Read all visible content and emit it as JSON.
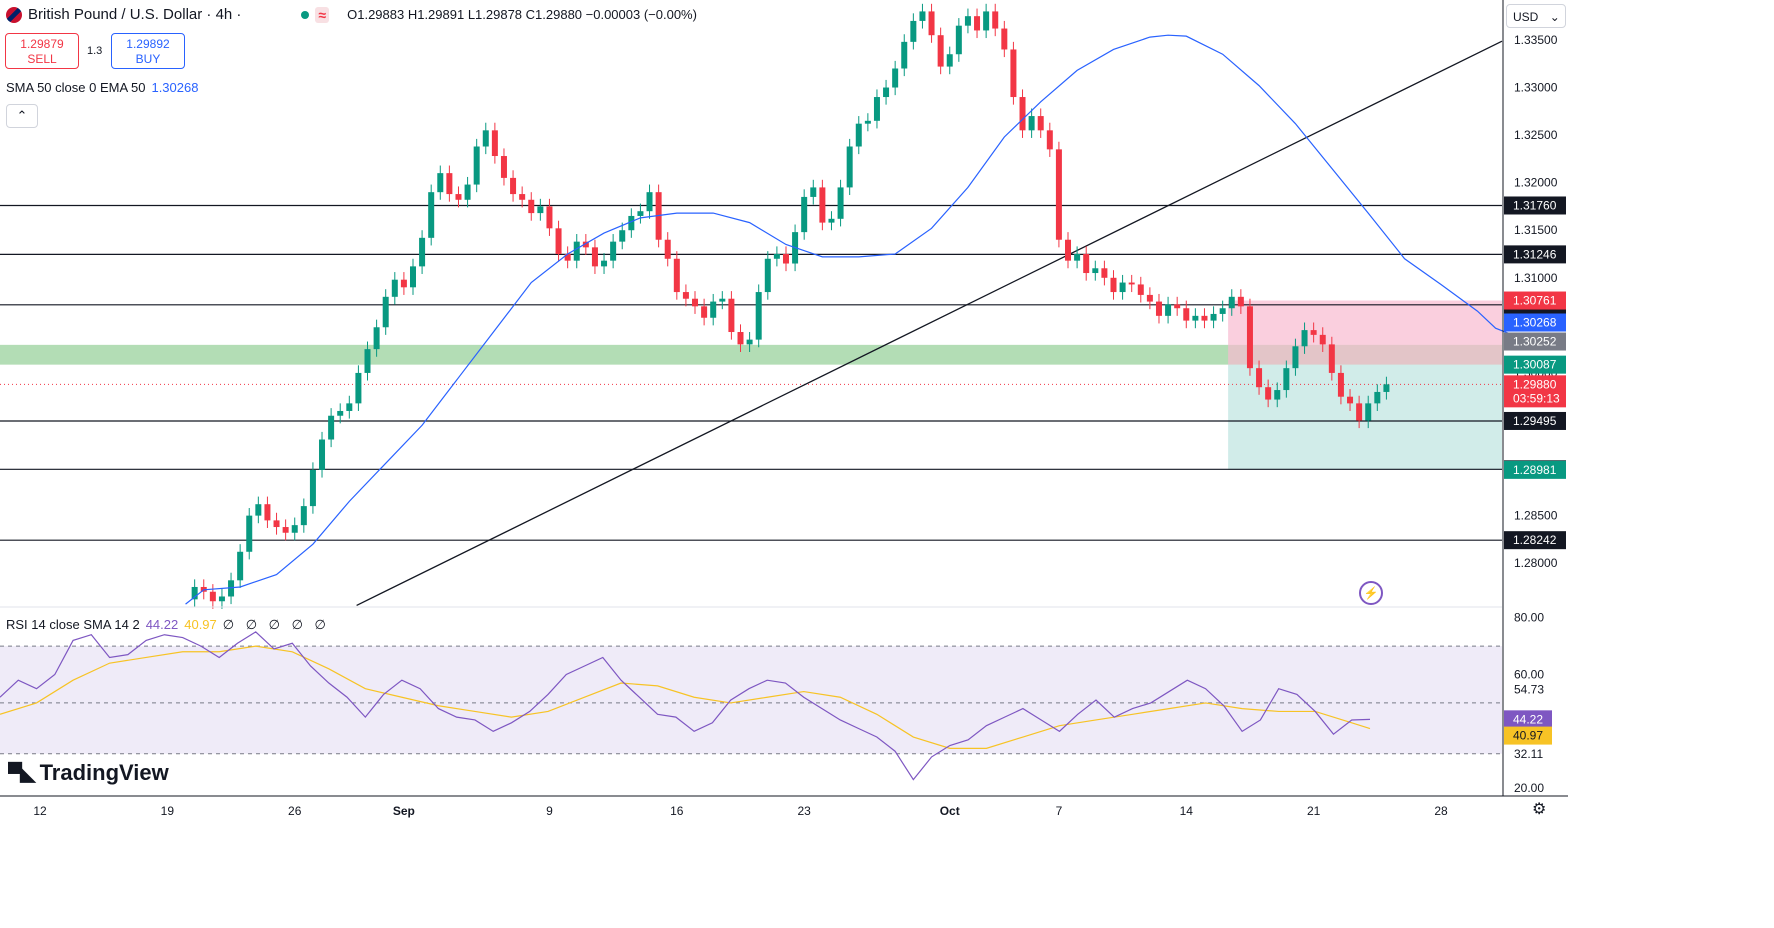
{
  "header": {
    "symbol_title": "British Pound / U.S. Dollar · 4h ·",
    "live_icon": "pulse-icon",
    "ohlc": "O1.29883 H1.29891 L1.29878 C1.29880 −0.00003 (−0.00%)"
  },
  "trade": {
    "sell_price": "1.29879",
    "sell_label": "SELL",
    "spread": "1.3",
    "buy_price": "1.29892",
    "buy_label": "BUY"
  },
  "indicator": {
    "label": "SMA 50 close 0 EMA 50",
    "value": "1.30268",
    "color": "#2962ff"
  },
  "rsi_header": {
    "label": "RSI 14 close SMA 14 2",
    "rsi_value": "44.22",
    "sma_value": "40.97",
    "extra": "∅ ∅ ∅ ∅ ∅"
  },
  "currency": "USD",
  "logo_text": "TradingView",
  "colors": {
    "up": "#089981",
    "down": "#f23645",
    "sma": "#2962ff",
    "rsi": "#7e57c2",
    "rsi_sma": "#f7c325",
    "zone": "#81c784",
    "stop": "#f8bbd0",
    "target": "#b2dfdb"
  },
  "chart_data": {
    "type": "candlestick",
    "timeframe": "4h",
    "x_ticks": [
      "12",
      "19",
      "26",
      "Sep",
      "9",
      "16",
      "23",
      "Oct",
      "7",
      "14",
      "21",
      "28"
    ],
    "y_ticks": [
      "1.33500",
      "1.33000",
      "1.32500",
      "1.32000",
      "1.31500",
      "1.31000",
      "1.30500",
      "1.30000",
      "1.29500",
      "1.29000",
      "1.28500",
      "1.28000"
    ],
    "y_range": [
      1.2755,
      1.3392
    ],
    "last_price": 1.2988,
    "countdown": "03:59:13",
    "horizontal_levels": [
      {
        "label": "1.31760",
        "value": 1.3176
      },
      {
        "label": "1.31246",
        "value": 1.31246
      },
      {
        "label": "1.30716",
        "value": 1.30716
      },
      {
        "label": "1.29495",
        "value": 1.29495
      },
      {
        "label": "1.28987",
        "value": 1.28987
      },
      {
        "label": "1.28242",
        "value": 1.28242
      }
    ],
    "support_zone": [
      1.30087,
      1.30295
    ],
    "position": {
      "stop_label": "1.30761",
      "stop": 1.30761,
      "entry_label": "1.30087",
      "entry": 1.30087,
      "target_label": "1.28981",
      "target": 1.28981,
      "sma_label": "1.30268",
      "other_label": "1.30252",
      "last_label": "1.29880"
    },
    "trendline": {
      "start_day": 17.4,
      "start_price": 1.27556,
      "end_day": 56.5,
      "end_price": 1.3124
    },
    "sma50_path": [
      [
        8,
        1.2757
      ],
      [
        9,
        1.2772
      ],
      [
        11,
        1.2775
      ],
      [
        13,
        1.2788
      ],
      [
        15,
        1.282
      ],
      [
        17,
        1.2865
      ],
      [
        19,
        1.2905
      ],
      [
        21,
        1.2945
      ],
      [
        23,
        1.2995
      ],
      [
        25,
        1.3045
      ],
      [
        27,
        1.3095
      ],
      [
        29,
        1.3125
      ],
      [
        31,
        1.3147
      ],
      [
        33,
        1.3163
      ],
      [
        35,
        1.3168
      ],
      [
        37,
        1.3168
      ],
      [
        39,
        1.3158
      ],
      [
        41,
        1.3135
      ],
      [
        43,
        1.3122
      ],
      [
        45,
        1.3122
      ],
      [
        47,
        1.3125
      ],
      [
        49,
        1.3152
      ],
      [
        51,
        1.3195
      ],
      [
        53,
        1.3248
      ],
      [
        55,
        1.3285
      ],
      [
        57,
        1.3318
      ],
      [
        59,
        1.334
      ],
      [
        61,
        1.3353
      ],
      [
        62,
        1.3355
      ],
      [
        63,
        1.3354
      ],
      [
        65,
        1.3335
      ],
      [
        67,
        1.3302
      ],
      [
        69,
        1.3262
      ],
      [
        71,
        1.3215
      ],
      [
        73,
        1.3168
      ],
      [
        75,
        1.312
      ],
      [
        77,
        1.3093
      ],
      [
        79,
        1.3065
      ],
      [
        80,
        1.3047
      ],
      [
        82,
        1.3032
      ],
      [
        83,
        1.3027
      ]
    ],
    "price_path": [
      [
        8,
        1.2762
      ],
      [
        8.5,
        1.2775
      ],
      [
        9,
        1.277
      ],
      [
        9.5,
        1.276
      ],
      [
        10,
        1.2765
      ],
      [
        10.5,
        1.2782
      ],
      [
        11,
        1.2812
      ],
      [
        11.5,
        1.285
      ],
      [
        12,
        1.2862
      ],
      [
        12.5,
        1.2845
      ],
      [
        13,
        1.2838
      ],
      [
        13.5,
        1.2832
      ],
      [
        14,
        1.284
      ],
      [
        14.5,
        1.286
      ],
      [
        15,
        1.2898
      ],
      [
        15.5,
        1.293
      ],
      [
        16,
        1.2955
      ],
      [
        16.5,
        1.296
      ],
      [
        17,
        1.2968
      ],
      [
        17.5,
        1.3
      ],
      [
        18,
        1.3025
      ],
      [
        18.5,
        1.3048
      ],
      [
        19,
        1.308
      ],
      [
        19.5,
        1.3098
      ],
      [
        20,
        1.309
      ],
      [
        20.5,
        1.3112
      ],
      [
        21,
        1.3142
      ],
      [
        21.5,
        1.319
      ],
      [
        22,
        1.321
      ],
      [
        22.5,
        1.3188
      ],
      [
        23,
        1.3182
      ],
      [
        23.5,
        1.3198
      ],
      [
        24,
        1.3238
      ],
      [
        24.5,
        1.3255
      ],
      [
        25,
        1.3228
      ],
      [
        25.5,
        1.3205
      ],
      [
        26,
        1.3188
      ],
      [
        26.5,
        1.3182
      ],
      [
        27,
        1.3168
      ],
      [
        27.5,
        1.3175
      ],
      [
        28,
        1.3152
      ],
      [
        28.5,
        1.3125
      ],
      [
        29,
        1.3118
      ],
      [
        29.5,
        1.3138
      ],
      [
        30,
        1.3132
      ],
      [
        30.5,
        1.3112
      ],
      [
        31,
        1.3118
      ],
      [
        31.5,
        1.3138
      ],
      [
        32,
        1.315
      ],
      [
        32.5,
        1.3165
      ],
      [
        33,
        1.317
      ],
      [
        33.5,
        1.319
      ],
      [
        34,
        1.314
      ],
      [
        34.5,
        1.312
      ],
      [
        35,
        1.3085
      ],
      [
        35.5,
        1.3078
      ],
      [
        36,
        1.307
      ],
      [
        36.5,
        1.3058
      ],
      [
        37,
        1.3075
      ],
      [
        37.5,
        1.3078
      ],
      [
        38,
        1.3043
      ],
      [
        38.5,
        1.303
      ],
      [
        39,
        1.3035
      ],
      [
        39.5,
        1.3085
      ],
      [
        40,
        1.312
      ],
      [
        40.5,
        1.3125
      ],
      [
        41,
        1.3115
      ],
      [
        41.5,
        1.3148
      ],
      [
        42,
        1.3185
      ],
      [
        42.5,
        1.3195
      ],
      [
        43,
        1.3158
      ],
      [
        43.5,
        1.3162
      ],
      [
        44,
        1.3195
      ],
      [
        44.5,
        1.3238
      ],
      [
        45,
        1.3262
      ],
      [
        45.5,
        1.3265
      ],
      [
        46,
        1.329
      ],
      [
        46.5,
        1.33
      ],
      [
        47,
        1.332
      ],
      [
        47.5,
        1.3348
      ],
      [
        48,
        1.337
      ],
      [
        48.5,
        1.338
      ],
      [
        49,
        1.3355
      ],
      [
        49.5,
        1.3322
      ],
      [
        50,
        1.3335
      ],
      [
        50.5,
        1.3365
      ],
      [
        51,
        1.3375
      ],
      [
        51.5,
        1.336
      ],
      [
        52,
        1.338
      ],
      [
        52.5,
        1.3362
      ],
      [
        53,
        1.334
      ],
      [
        53.5,
        1.329
      ],
      [
        54,
        1.3255
      ],
      [
        54.5,
        1.327
      ],
      [
        55,
        1.3255
      ],
      [
        55.5,
        1.3235
      ],
      [
        56,
        1.314
      ],
      [
        56.5,
        1.3118
      ],
      [
        57,
        1.3125
      ],
      [
        57.5,
        1.3105
      ],
      [
        58,
        1.311
      ],
      [
        58.5,
        1.31
      ],
      [
        59,
        1.3085
      ],
      [
        59.5,
        1.3095
      ],
      [
        60,
        1.3093
      ],
      [
        60.5,
        1.3082
      ],
      [
        61,
        1.3075
      ],
      [
        61.5,
        1.306
      ],
      [
        62,
        1.3072
      ],
      [
        62.5,
        1.3068
      ],
      [
        63,
        1.3055
      ],
      [
        63.5,
        1.306
      ],
      [
        64,
        1.3055
      ],
      [
        64.5,
        1.3062
      ],
      [
        65,
        1.3068
      ],
      [
        65.5,
        1.308
      ],
      [
        66,
        1.307
      ],
      [
        66.5,
        1.3005
      ],
      [
        67,
        1.2985
      ],
      [
        67.5,
        1.2972
      ],
      [
        68,
        1.2982
      ],
      [
        68.5,
        1.3005
      ],
      [
        69,
        1.3028
      ],
      [
        69.5,
        1.3045
      ],
      [
        70,
        1.304
      ],
      [
        70.5,
        1.303
      ],
      [
        71,
        1.3
      ],
      [
        71.5,
        1.2975
      ],
      [
        72,
        1.2968
      ],
      [
        72.5,
        1.295
      ],
      [
        73,
        1.2968
      ],
      [
        73.5,
        1.298
      ],
      [
        74,
        1.2988
      ]
    ],
    "rsi_y_ticks": [
      "80.00",
      "60.00",
      "20.00"
    ],
    "rsi_levels": [
      {
        "label": "54.73",
        "value": 54.73
      },
      {
        "label": "32.11",
        "value": 32.11
      }
    ],
    "rsi_range": [
      19,
      82
    ],
    "rsi_band": [
      32.11,
      70
    ],
    "rsi_path": [
      [
        0,
        52
      ],
      [
        2,
        58
      ],
      [
        4,
        55
      ],
      [
        6,
        60
      ],
      [
        8,
        72
      ],
      [
        10,
        74
      ],
      [
        12,
        66
      ],
      [
        14,
        67
      ],
      [
        16,
        72
      ],
      [
        18,
        74
      ],
      [
        20,
        73
      ],
      [
        22,
        70
      ],
      [
        24,
        66
      ],
      [
        26,
        71
      ],
      [
        28,
        75
      ],
      [
        30,
        69
      ],
      [
        32,
        71
      ],
      [
        34,
        63
      ],
      [
        36,
        57
      ],
      [
        38,
        52
      ],
      [
        40,
        45
      ],
      [
        42,
        53
      ],
      [
        44,
        58
      ],
      [
        46,
        55
      ],
      [
        48,
        48
      ],
      [
        50,
        45
      ],
      [
        52,
        44
      ],
      [
        54,
        40
      ],
      [
        56,
        43
      ],
      [
        58,
        47
      ],
      [
        60,
        53
      ],
      [
        62,
        60
      ],
      [
        64,
        63
      ],
      [
        66,
        66
      ],
      [
        68,
        58
      ],
      [
        70,
        52
      ],
      [
        72,
        46
      ],
      [
        74,
        45
      ],
      [
        76,
        40
      ],
      [
        78,
        43
      ],
      [
        80,
        51
      ],
      [
        82,
        55
      ],
      [
        84,
        58
      ],
      [
        86,
        57
      ],
      [
        88,
        52
      ],
      [
        90,
        48
      ],
      [
        92,
        44
      ],
      [
        94,
        41
      ],
      [
        96,
        38
      ],
      [
        98,
        33
      ],
      [
        100,
        23
      ],
      [
        102,
        31
      ],
      [
        104,
        35
      ],
      [
        106,
        37
      ],
      [
        108,
        42
      ],
      [
        110,
        45
      ],
      [
        112,
        48
      ],
      [
        114,
        44
      ],
      [
        116,
        40
      ],
      [
        118,
        46
      ],
      [
        120,
        51
      ],
      [
        122,
        45
      ],
      [
        124,
        48
      ],
      [
        126,
        50
      ],
      [
        128,
        54
      ],
      [
        130,
        58
      ],
      [
        132,
        55
      ],
      [
        134,
        49
      ],
      [
        136,
        40
      ],
      [
        138,
        44
      ],
      [
        140,
        55
      ],
      [
        142,
        53
      ],
      [
        144,
        47
      ],
      [
        146,
        39
      ],
      [
        148,
        44
      ],
      [
        150,
        44.22
      ]
    ],
    "rsi_sma_path": [
      [
        0,
        46
      ],
      [
        4,
        50
      ],
      [
        8,
        58
      ],
      [
        12,
        64
      ],
      [
        16,
        66
      ],
      [
        20,
        68
      ],
      [
        24,
        68
      ],
      [
        28,
        70
      ],
      [
        32,
        68
      ],
      [
        36,
        62
      ],
      [
        40,
        55
      ],
      [
        44,
        52
      ],
      [
        48,
        49
      ],
      [
        52,
        47
      ],
      [
        56,
        45
      ],
      [
        60,
        47
      ],
      [
        64,
        52
      ],
      [
        68,
        57
      ],
      [
        72,
        56
      ],
      [
        76,
        52
      ],
      [
        80,
        50
      ],
      [
        84,
        52
      ],
      [
        88,
        54
      ],
      [
        92,
        52
      ],
      [
        96,
        46
      ],
      [
        100,
        38
      ],
      [
        104,
        34
      ],
      [
        108,
        34
      ],
      [
        112,
        38
      ],
      [
        116,
        42
      ],
      [
        120,
        44
      ],
      [
        124,
        46
      ],
      [
        128,
        48
      ],
      [
        132,
        50
      ],
      [
        136,
        48
      ],
      [
        140,
        47
      ],
      [
        144,
        47
      ],
      [
        148,
        43
      ],
      [
        150,
        40.97
      ]
    ],
    "rsi_label": "44.22",
    "rsi_sma_label": "40.97"
  }
}
